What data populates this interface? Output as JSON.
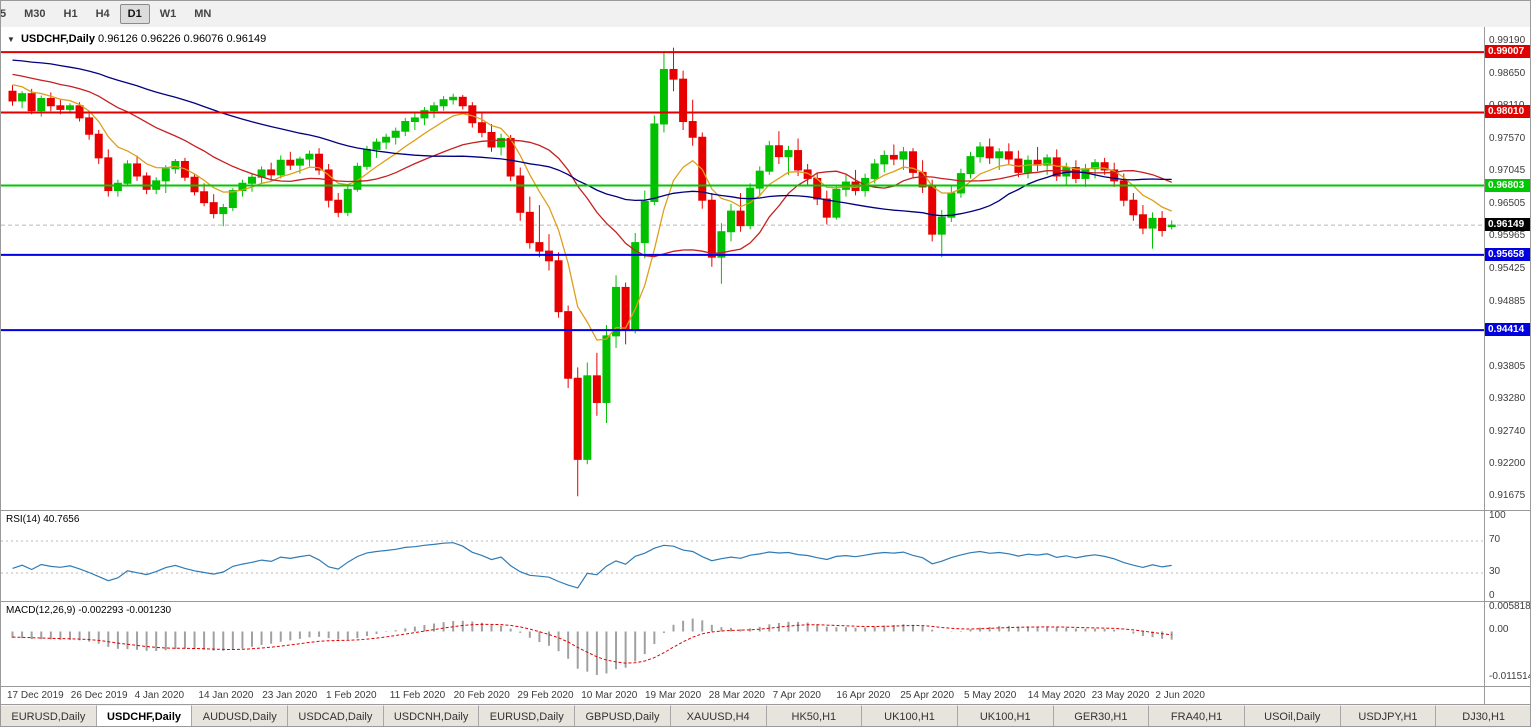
{
  "toolbar": {
    "timeframes": [
      {
        "label": "5",
        "active": false,
        "clipped": true
      },
      {
        "label": "M30",
        "active": false
      },
      {
        "label": "H1",
        "active": false
      },
      {
        "label": "H4",
        "active": false
      },
      {
        "label": "D1",
        "active": true
      },
      {
        "label": "W1",
        "active": false
      },
      {
        "label": "MN",
        "active": false
      }
    ]
  },
  "chart": {
    "dropdown_icon": "▼",
    "symbol_title": "USDCHF,Daily",
    "ohlc_text": "0.96126 0.96226 0.96076 0.96149"
  },
  "rsi_panel": {
    "label": "RSI(14) 40.7656",
    "value": 40.7656,
    "line_color": "#2e7bb5",
    "levels": [
      70,
      30
    ],
    "axis": [
      {
        "label": "100",
        "value": 100
      },
      {
        "label": "70",
        "value": 70
      },
      {
        "label": "30",
        "value": 30
      },
      {
        "label": "0",
        "value": 0
      }
    ]
  },
  "macd_panel": {
    "label": "MACD(12,26,9) -0.002293 -0.001230",
    "macd_value": -0.002293,
    "signal_value": -0.00123,
    "histogram_color": "#a0a0a0",
    "signal_color": "#e00000",
    "range": [
      -0.011514,
      0.005818
    ],
    "axis": [
      {
        "label": "0.005818",
        "value": 0.005818
      },
      {
        "label": "0.00",
        "value": 0
      },
      {
        "label": "-0.011514",
        "value": -0.011514
      }
    ]
  },
  "tabs": [
    {
      "label": "EURUSD,Daily",
      "active": false
    },
    {
      "label": "USDCHF,Daily",
      "active": true
    },
    {
      "label": "AUDUSD,Daily",
      "active": false
    },
    {
      "label": "USDCAD,Daily",
      "active": false
    },
    {
      "label": "USDCNH,Daily",
      "active": false
    },
    {
      "label": "EURUSD,Daily",
      "active": false
    },
    {
      "label": "GBPUSD,Daily",
      "active": false
    },
    {
      "label": "XAUUSD,H4",
      "active": false
    },
    {
      "label": "HK50,H1",
      "active": false
    },
    {
      "label": "UK100,H1",
      "active": false
    },
    {
      "label": "UK100,H1",
      "active": false
    },
    {
      "label": "GER30,H1",
      "active": false
    },
    {
      "label": "FRA40,H1",
      "active": false
    },
    {
      "label": "USOil,Daily",
      "active": false
    },
    {
      "label": "USDJPY,H1",
      "active": false
    },
    {
      "label": "DJ30,H1",
      "active": false
    }
  ],
  "chart_data": {
    "type": "candlestick",
    "symbol": "USDCHF",
    "timeframe": "Daily",
    "price_range": [
      0.91675,
      0.9919
    ],
    "price_axis_ticks": [
      "0.99190",
      "0.98650",
      "0.98110",
      "0.97570",
      "0.97045",
      "0.96505",
      "0.95965",
      "0.95425",
      "0.94885",
      "0.94345",
      "0.93805",
      "0.93280",
      "0.92740",
      "0.92200",
      "0.91675"
    ],
    "x_labels": [
      "17 Dec 2019",
      "26 Dec 2019",
      "4 Jan 2020",
      "14 Jan 2020",
      "23 Jan 2020",
      "1 Feb 2020",
      "11 Feb 2020",
      "20 Feb 2020",
      "29 Feb 2020",
      "10 Mar 2020",
      "19 Mar 2020",
      "28 Mar 2020",
      "7 Apr 2020",
      "16 Apr 2020",
      "25 Apr 2020",
      "5 May 2020",
      "14 May 2020",
      "23 May 2020",
      "2 Jun 2020"
    ],
    "colors": {
      "up": "#00c000",
      "down": "#e80000"
    },
    "current_price": {
      "value": 0.96149,
      "label": "0.96149",
      "line_color": "#b8b8b8",
      "label_bg": "#000000"
    },
    "hlines": [
      {
        "value": 0.99007,
        "label": "0.99007",
        "color": "#e00000",
        "width": 2
      },
      {
        "value": 0.9801,
        "label": "0.98010",
        "color": "#e00000",
        "width": 2
      },
      {
        "value": 0.96803,
        "label": "0.96803",
        "color": "#00c800",
        "width": 2
      },
      {
        "value": 0.95658,
        "label": "0.95658",
        "color": "#0000e0",
        "width": 2
      },
      {
        "value": 0.94414,
        "label": "0.94414",
        "color": "#0000e0",
        "width": 2
      }
    ],
    "moving_averages": [
      {
        "name": "ma-fast",
        "type": "ema",
        "period": 8,
        "color": "#dd9f1b"
      },
      {
        "name": "ma-mid",
        "type": "sma",
        "period": 20,
        "color": "#c62020"
      },
      {
        "name": "ma-slow",
        "type": "sma",
        "period": 45,
        "color": "#000080"
      }
    ],
    "indicators": {
      "rsi": {
        "period": 14,
        "current": 40.7656
      },
      "macd": {
        "fast": 12,
        "slow": 26,
        "signal": 9,
        "current": -0.002293,
        "signal_current": -0.00123
      }
    },
    "candles": [
      [
        0.9836,
        0.9846,
        0.9812,
        0.982
      ],
      [
        0.982,
        0.9836,
        0.9808,
        0.9832
      ],
      [
        0.9832,
        0.984,
        0.9798,
        0.9804
      ],
      [
        0.9804,
        0.9829,
        0.9794,
        0.9824
      ],
      [
        0.9824,
        0.9834,
        0.9803,
        0.9812
      ],
      [
        0.9812,
        0.9822,
        0.9798,
        0.9806
      ],
      [
        0.9806,
        0.9816,
        0.9799,
        0.9812
      ],
      [
        0.9812,
        0.9818,
        0.9786,
        0.9792
      ],
      [
        0.9792,
        0.9799,
        0.9756,
        0.9765
      ],
      [
        0.9765,
        0.9772,
        0.9716,
        0.9726
      ],
      [
        0.9726,
        0.974,
        0.9662,
        0.9672
      ],
      [
        0.9672,
        0.969,
        0.9662,
        0.9684
      ],
      [
        0.9684,
        0.9722,
        0.968,
        0.9716
      ],
      [
        0.9716,
        0.973,
        0.9688,
        0.9696
      ],
      [
        0.9696,
        0.9702,
        0.9666,
        0.9674
      ],
      [
        0.9674,
        0.9694,
        0.9666,
        0.9688
      ],
      [
        0.9688,
        0.9714,
        0.9668,
        0.9708
      ],
      [
        0.9708,
        0.9724,
        0.97,
        0.972
      ],
      [
        0.972,
        0.9726,
        0.9688,
        0.9694
      ],
      [
        0.9694,
        0.97,
        0.9664,
        0.967
      ],
      [
        0.967,
        0.9684,
        0.9646,
        0.9652
      ],
      [
        0.9652,
        0.9666,
        0.9626,
        0.9634
      ],
      [
        0.9634,
        0.965,
        0.9613,
        0.9644
      ],
      [
        0.9644,
        0.9676,
        0.9638,
        0.9672
      ],
      [
        0.9672,
        0.969,
        0.9662,
        0.9684
      ],
      [
        0.9684,
        0.97,
        0.967,
        0.9694
      ],
      [
        0.9694,
        0.9712,
        0.9684,
        0.9706
      ],
      [
        0.9706,
        0.9718,
        0.9688,
        0.9698
      ],
      [
        0.9698,
        0.973,
        0.9692,
        0.9722
      ],
      [
        0.9722,
        0.9736,
        0.9706,
        0.9714
      ],
      [
        0.9714,
        0.9728,
        0.97,
        0.9724
      ],
      [
        0.9724,
        0.9738,
        0.9712,
        0.9732
      ],
      [
        0.9732,
        0.9742,
        0.9698,
        0.9706
      ],
      [
        0.9706,
        0.9716,
        0.9644,
        0.9656
      ],
      [
        0.9656,
        0.9668,
        0.9628,
        0.9636
      ],
      [
        0.9636,
        0.968,
        0.963,
        0.9674
      ],
      [
        0.9674,
        0.9718,
        0.967,
        0.9712
      ],
      [
        0.9712,
        0.9746,
        0.9706,
        0.974
      ],
      [
        0.974,
        0.9758,
        0.9726,
        0.9752
      ],
      [
        0.9752,
        0.9766,
        0.974,
        0.976
      ],
      [
        0.976,
        0.9776,
        0.9748,
        0.977
      ],
      [
        0.977,
        0.9792,
        0.9762,
        0.9786
      ],
      [
        0.9786,
        0.98,
        0.9772,
        0.9792
      ],
      [
        0.9792,
        0.981,
        0.978,
        0.9804
      ],
      [
        0.9804,
        0.9818,
        0.9792,
        0.9812
      ],
      [
        0.9812,
        0.9828,
        0.9804,
        0.9822
      ],
      [
        0.9822,
        0.9832,
        0.9814,
        0.9826
      ],
      [
        0.9826,
        0.983,
        0.9806,
        0.9812
      ],
      [
        0.9812,
        0.9818,
        0.9776,
        0.9784
      ],
      [
        0.9784,
        0.9802,
        0.976,
        0.9768
      ],
      [
        0.9768,
        0.9782,
        0.9736,
        0.9744
      ],
      [
        0.9744,
        0.9766,
        0.973,
        0.9758
      ],
      [
        0.9758,
        0.9764,
        0.9688,
        0.9696
      ],
      [
        0.9696,
        0.971,
        0.9622,
        0.9636
      ],
      [
        0.9636,
        0.9662,
        0.9576,
        0.9586
      ],
      [
        0.9586,
        0.9648,
        0.9562,
        0.9572
      ],
      [
        0.9572,
        0.96,
        0.954,
        0.9556
      ],
      [
        0.9556,
        0.957,
        0.9462,
        0.9472
      ],
      [
        0.9472,
        0.9482,
        0.9346,
        0.9362
      ],
      [
        0.9362,
        0.938,
        0.9167,
        0.9228
      ],
      [
        0.9228,
        0.9388,
        0.922,
        0.9366
      ],
      [
        0.9366,
        0.9404,
        0.93,
        0.9322
      ],
      [
        0.9322,
        0.945,
        0.9288,
        0.9432
      ],
      [
        0.9432,
        0.9532,
        0.9412,
        0.9512
      ],
      [
        0.9512,
        0.952,
        0.9418,
        0.9442
      ],
      [
        0.9442,
        0.9602,
        0.9436,
        0.9586
      ],
      [
        0.9586,
        0.9672,
        0.956,
        0.9654
      ],
      [
        0.9654,
        0.9796,
        0.9648,
        0.9782
      ],
      [
        0.9782,
        0.9902,
        0.9768,
        0.9872
      ],
      [
        0.9872,
        0.9908,
        0.9836,
        0.9856
      ],
      [
        0.9856,
        0.987,
        0.9772,
        0.9786
      ],
      [
        0.9786,
        0.9822,
        0.9746,
        0.976
      ],
      [
        0.976,
        0.9768,
        0.9642,
        0.9656
      ],
      [
        0.9656,
        0.9668,
        0.9546,
        0.9562
      ],
      [
        0.9562,
        0.9618,
        0.9518,
        0.9604
      ],
      [
        0.9604,
        0.965,
        0.9588,
        0.9638
      ],
      [
        0.9638,
        0.9668,
        0.9604,
        0.9614
      ],
      [
        0.9614,
        0.9684,
        0.9608,
        0.9676
      ],
      [
        0.9676,
        0.9712,
        0.9662,
        0.9704
      ],
      [
        0.9704,
        0.9754,
        0.9698,
        0.9746
      ],
      [
        0.9746,
        0.977,
        0.9716,
        0.9728
      ],
      [
        0.9728,
        0.9746,
        0.9698,
        0.9738
      ],
      [
        0.9738,
        0.9758,
        0.9696,
        0.9706
      ],
      [
        0.9706,
        0.9716,
        0.9682,
        0.9692
      ],
      [
        0.9692,
        0.97,
        0.9648,
        0.9658
      ],
      [
        0.9658,
        0.9672,
        0.9616,
        0.9628
      ],
      [
        0.9628,
        0.9682,
        0.9624,
        0.9674
      ],
      [
        0.9674,
        0.9698,
        0.9662,
        0.9686
      ],
      [
        0.9686,
        0.9706,
        0.9664,
        0.9672
      ],
      [
        0.9672,
        0.97,
        0.9662,
        0.9692
      ],
      [
        0.9692,
        0.9724,
        0.9684,
        0.9716
      ],
      [
        0.9716,
        0.9738,
        0.9702,
        0.973
      ],
      [
        0.973,
        0.9748,
        0.9714,
        0.9724
      ],
      [
        0.9724,
        0.9744,
        0.9706,
        0.9736
      ],
      [
        0.9736,
        0.9742,
        0.9694,
        0.9702
      ],
      [
        0.9702,
        0.9722,
        0.9668,
        0.9678
      ],
      [
        0.9678,
        0.969,
        0.9588,
        0.96
      ],
      [
        0.96,
        0.964,
        0.9562,
        0.9628
      ],
      [
        0.9628,
        0.968,
        0.962,
        0.9668
      ],
      [
        0.9668,
        0.9708,
        0.966,
        0.97
      ],
      [
        0.97,
        0.9736,
        0.9692,
        0.9728
      ],
      [
        0.9728,
        0.9752,
        0.9718,
        0.9744
      ],
      [
        0.9744,
        0.9758,
        0.9716,
        0.9726
      ],
      [
        0.9726,
        0.9742,
        0.9706,
        0.9736
      ],
      [
        0.9736,
        0.975,
        0.9716,
        0.9724
      ],
      [
        0.9724,
        0.9738,
        0.9694,
        0.9702
      ],
      [
        0.9702,
        0.973,
        0.9692,
        0.9722
      ],
      [
        0.9722,
        0.9744,
        0.9704,
        0.9714
      ],
      [
        0.9714,
        0.9732,
        0.9698,
        0.9726
      ],
      [
        0.9726,
        0.974,
        0.9688,
        0.9696
      ],
      [
        0.9696,
        0.9718,
        0.968,
        0.971
      ],
      [
        0.971,
        0.9722,
        0.9684,
        0.9692
      ],
      [
        0.9692,
        0.9716,
        0.9678,
        0.9708
      ],
      [
        0.9708,
        0.9724,
        0.9692,
        0.9718
      ],
      [
        0.9718,
        0.9726,
        0.9698,
        0.9706
      ],
      [
        0.9706,
        0.9718,
        0.9678,
        0.9688
      ],
      [
        0.9688,
        0.97,
        0.9646,
        0.9656
      ],
      [
        0.9656,
        0.9668,
        0.9622,
        0.9632
      ],
      [
        0.9632,
        0.9648,
        0.96,
        0.961
      ],
      [
        0.961,
        0.9636,
        0.9576,
        0.9626
      ],
      [
        0.9626,
        0.9638,
        0.9596,
        0.9606
      ],
      [
        0.96126,
        0.96226,
        0.96076,
        0.96149
      ]
    ]
  }
}
